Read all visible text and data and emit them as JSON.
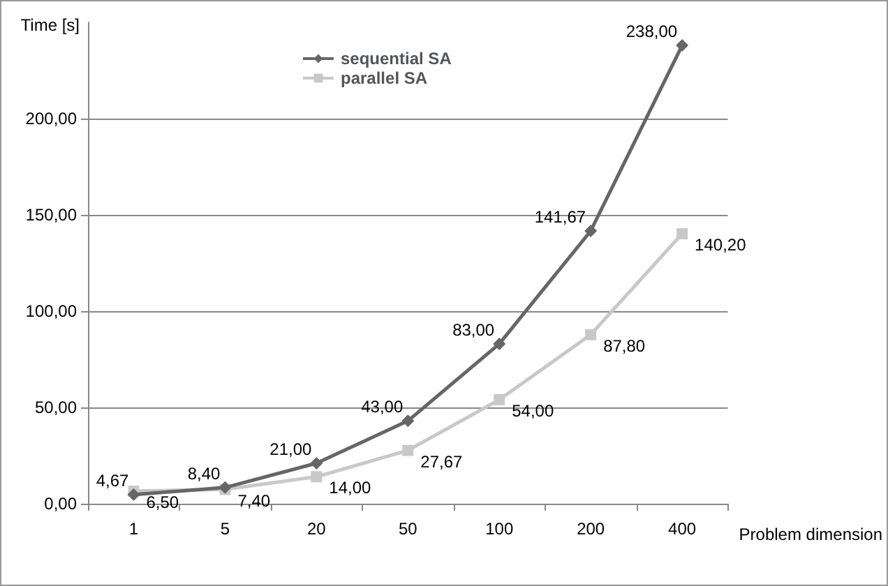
{
  "chart_data": {
    "type": "line",
    "xlabel": "Problem dimension",
    "ylabel": "Time [s]",
    "categories": [
      "1",
      "5",
      "20",
      "50",
      "100",
      "200",
      "400"
    ],
    "series": [
      {
        "name": "sequential SA",
        "color": "#666666",
        "marker": "diamond",
        "values": [
          4.67,
          8.4,
          21,
          43,
          83,
          141.67,
          238
        ],
        "value_labels": [
          "4,67",
          "8,40",
          "21,00",
          "43,00",
          "83,00",
          "141,67",
          "238,00"
        ]
      },
      {
        "name": "parallel SA",
        "color": "#c8c8c8",
        "marker": "square",
        "values": [
          6.5,
          7.4,
          14,
          27.67,
          54,
          87.8,
          140.2
        ],
        "value_labels": [
          "6,50",
          "7,40",
          "14,00",
          "27,67",
          "54,00",
          "87,80",
          "140,20"
        ]
      }
    ],
    "ylim": [
      0,
      250
    ],
    "yticks": [
      {
        "value": 0,
        "label": "0,00"
      },
      {
        "value": 50,
        "label": "50,00"
      },
      {
        "value": 100,
        "label": "100,00"
      },
      {
        "value": 150,
        "label": "150,00"
      },
      {
        "value": 200,
        "label": "200,00"
      }
    ],
    "grid": "y",
    "legend": "top",
    "line_style": "solid"
  }
}
